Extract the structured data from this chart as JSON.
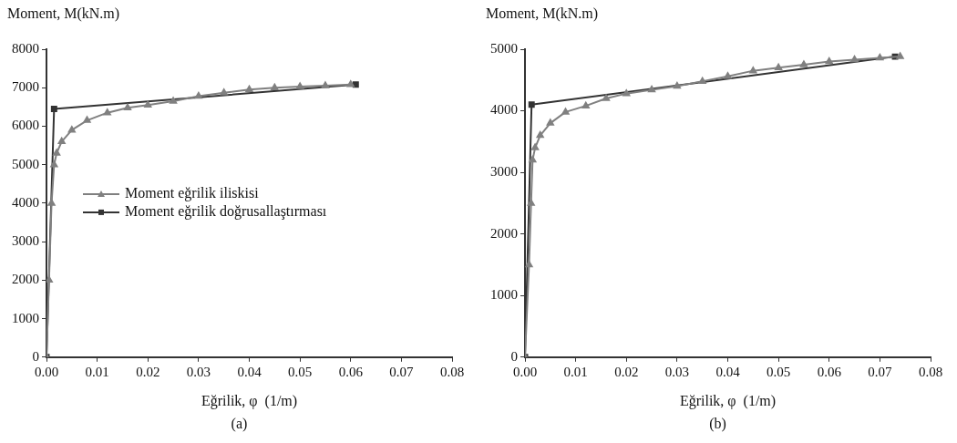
{
  "chart_data": [
    {
      "type": "line",
      "xlabel": "Eğrilik, φ  (1/m)",
      "ylabel": "Moment, M(kN.m)",
      "annotations": [
        "(a)"
      ],
      "legend": "left",
      "grid": false,
      "xlim": [
        0,
        0.08
      ],
      "ylim": [
        0,
        8000
      ],
      "xticks": [
        {
          "value": 0,
          "label": "0.00"
        },
        {
          "value": 0.01,
          "label": "0.01"
        },
        {
          "value": 0.02,
          "label": "0.02"
        },
        {
          "value": 0.03,
          "label": "0.03"
        },
        {
          "value": 0.04,
          "label": "0.04"
        },
        {
          "value": 0.05,
          "label": "0.05"
        },
        {
          "value": 0.06,
          "label": "0.06"
        },
        {
          "value": 0.07,
          "label": "0.07"
        },
        {
          "value": 0.08,
          "label": "0.08"
        }
      ],
      "yticks": [
        0,
        1000,
        2000,
        3000,
        4000,
        5000,
        6000,
        7000,
        8000
      ],
      "series": [
        {
          "name": "Moment eğrilik iliskisi",
          "color": "#808080",
          "marker": "triangle",
          "x": [
            0,
            0.0005,
            0.001,
            0.0015,
            0.002,
            0.003,
            0.005,
            0.008,
            0.012,
            0.016,
            0.02,
            0.025,
            0.03,
            0.035,
            0.04,
            0.045,
            0.05,
            0.055,
            0.06
          ],
          "values": [
            0,
            2000,
            4000,
            5000,
            5300,
            5600,
            5900,
            6150,
            6350,
            6480,
            6550,
            6650,
            6780,
            6870,
            6950,
            7000,
            7030,
            7050,
            7080
          ]
        },
        {
          "name": "Moment eğrilik doğrusallaştırması",
          "color": "#333333",
          "marker": "square",
          "x": [
            0,
            0.0015,
            0.061
          ],
          "values": [
            0,
            6450,
            7080
          ]
        }
      ]
    },
    {
      "type": "line",
      "xlabel": "Eğrilik, φ  (1/m)",
      "ylabel": "Moment, M(kN.m)",
      "annotations": [
        "(b)"
      ],
      "grid": false,
      "xlim": [
        0,
        0.08
      ],
      "ylim": [
        0,
        5000
      ],
      "xticks": [
        {
          "value": 0,
          "label": "0.00"
        },
        {
          "value": 0.01,
          "label": "0.01"
        },
        {
          "value": 0.02,
          "label": "0.02"
        },
        {
          "value": 0.03,
          "label": "0.03"
        },
        {
          "value": 0.04,
          "label": "0.04"
        },
        {
          "value": 0.05,
          "label": "0.05"
        },
        {
          "value": 0.06,
          "label": "0.06"
        },
        {
          "value": 0.07,
          "label": "0.07"
        },
        {
          "value": 0.08,
          "label": "0.08"
        }
      ],
      "yticks": [
        0,
        1000,
        2000,
        3000,
        4000,
        5000
      ],
      "series": [
        {
          "color": "#808080",
          "marker": "triangle",
          "x": [
            0,
            0.0008,
            0.0012,
            0.0015,
            0.002,
            0.003,
            0.005,
            0.008,
            0.012,
            0.016,
            0.02,
            0.025,
            0.03,
            0.035,
            0.04,
            0.045,
            0.05,
            0.055,
            0.06,
            0.065,
            0.07,
            0.074
          ],
          "values": [
            0,
            1500,
            2500,
            3200,
            3400,
            3600,
            3800,
            3980,
            4080,
            4200,
            4280,
            4340,
            4400,
            4480,
            4560,
            4650,
            4700,
            4750,
            4800,
            4830,
            4860,
            4880
          ]
        },
        {
          "color": "#333333",
          "marker": "square",
          "x": [
            0,
            0.0013,
            0.073
          ],
          "values": [
            0,
            4100,
            4880
          ]
        }
      ]
    }
  ]
}
